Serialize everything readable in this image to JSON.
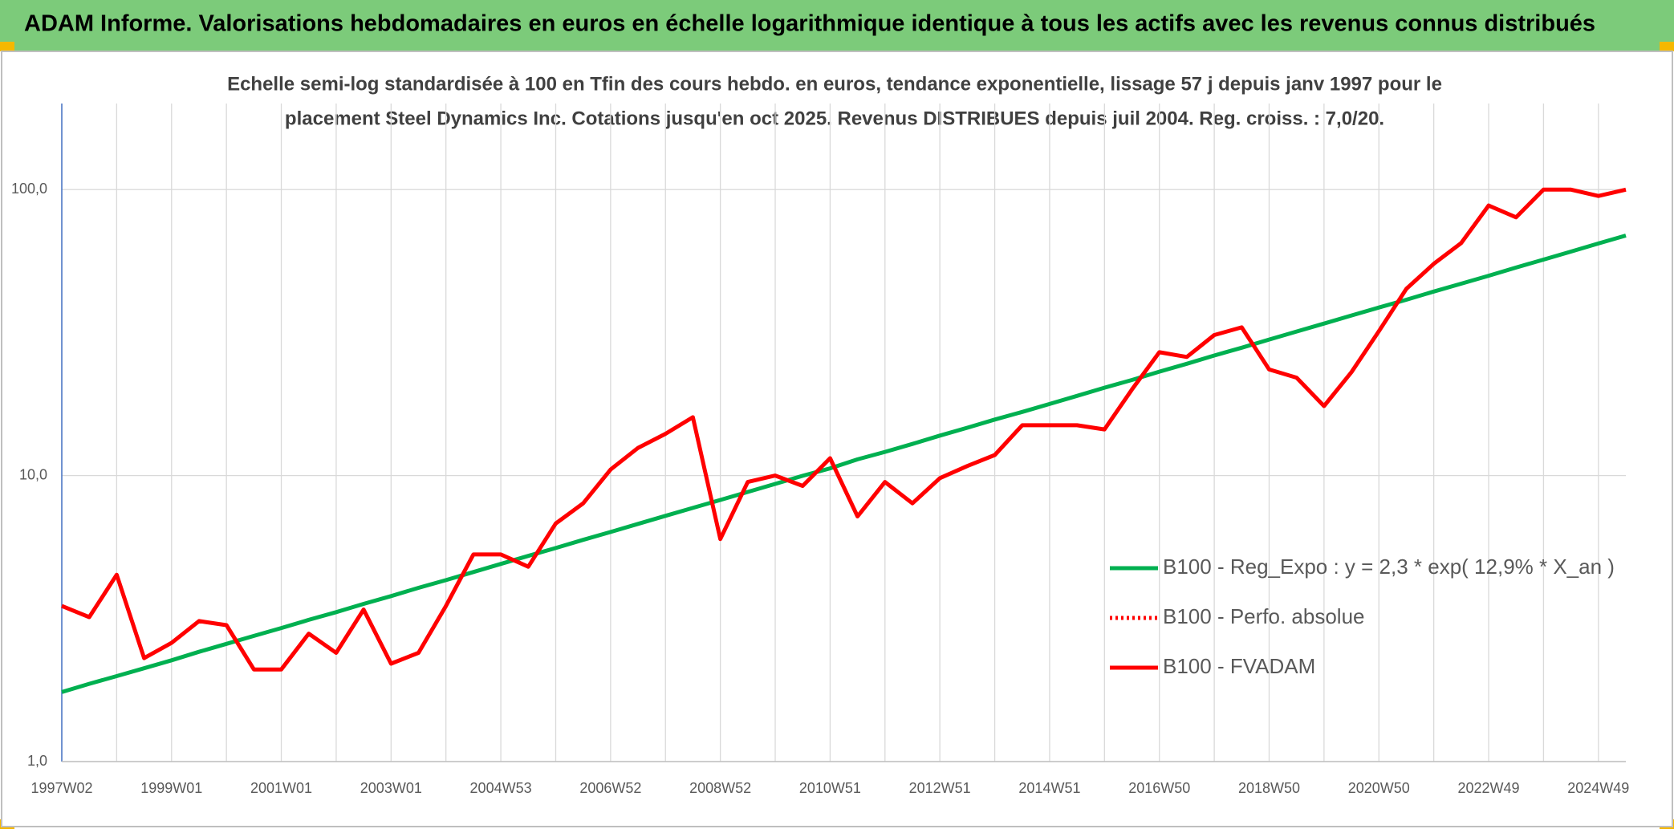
{
  "header": "ADAM Informe. Valorisations hebdomadaires en euros en échelle logarithmique identique à tous les actifs avec les revenus connus distribués",
  "chart_data": {
    "type": "line",
    "title": "Echelle semi-log standardisée à 100 en Tfin des cours hebdo. en euros, tendance exponentielle, lissage 57 j depuis janv 1997 pour le",
    "subtitle": "placement Steel Dynamics Inc. Cotations jusqu'en oct 2025. Revenus DISTRIBUES depuis juil 2004. Reg. croiss. : 7,0/20.",
    "categories": [
      "1997W02",
      null,
      null,
      null,
      "1999W01",
      null,
      null,
      null,
      "2001W01",
      null,
      null,
      null,
      "2003W01",
      null,
      null,
      null,
      "2004W53",
      null,
      null,
      null,
      "2006W52",
      null,
      null,
      null,
      "2008W52",
      null,
      null,
      null,
      "2010W51",
      null,
      null,
      null,
      "2012W51",
      null,
      null,
      null,
      "2014W51",
      null,
      null,
      null,
      "2016W50",
      null,
      null,
      null,
      "2018W50",
      null,
      null,
      null,
      "2020W50",
      null,
      null,
      null,
      "2022W49",
      null,
      null,
      null,
      "2024W49",
      null
    ],
    "series": [
      {
        "name": "B100 - Reg_Expo : y = 2,3 * exp( 12,9% *  X_an )",
        "color": "#00b050",
        "style": "solid",
        "values": [
          1.75,
          1.87,
          1.99,
          2.12,
          2.26,
          2.42,
          2.58,
          2.75,
          2.93,
          3.13,
          3.33,
          3.56,
          3.79,
          4.05,
          4.31,
          4.6,
          4.91,
          5.24,
          5.58,
          5.96,
          6.35,
          6.78,
          7.23,
          7.71,
          8.22,
          8.77,
          9.35,
          9.98,
          10.6,
          11.4,
          12.1,
          12.9,
          13.8,
          14.7,
          15.7,
          16.7,
          17.8,
          19.0,
          20.3,
          21.6,
          23.1,
          24.6,
          26.3,
          28.0,
          29.9,
          31.9,
          34.0,
          36.3,
          38.7,
          41.2,
          44.0,
          46.9,
          50.0,
          53.4,
          56.9,
          60.7,
          64.8,
          69.1
        ]
      },
      {
        "name": "B100 - Perfo. absolue",
        "color": "#ff0000",
        "style": "dotted",
        "values": [
          null,
          null,
          null,
          null,
          null,
          null,
          null,
          null,
          null,
          null,
          null,
          null,
          null,
          null,
          null,
          null,
          null,
          null,
          null,
          null,
          null,
          null,
          null,
          null,
          null,
          null,
          null,
          null,
          null,
          null,
          null,
          null,
          null,
          null,
          null,
          null,
          null,
          null,
          null,
          null,
          null,
          null,
          null,
          null,
          null,
          null,
          null,
          null,
          null,
          null,
          null,
          null,
          null,
          null,
          null,
          null,
          null,
          null
        ]
      },
      {
        "name": "B100 - FVADAM",
        "color": "#ff0000",
        "style": "solid",
        "values": [
          3.5,
          3.2,
          4.5,
          2.3,
          2.6,
          3.1,
          3.0,
          2.1,
          2.1,
          2.8,
          2.4,
          3.4,
          2.2,
          2.4,
          3.5,
          5.3,
          5.3,
          4.8,
          6.8,
          8.0,
          10.5,
          12.5,
          14.0,
          16.0,
          6.0,
          9.5,
          10.0,
          9.2,
          11.5,
          7.2,
          9.5,
          8.0,
          9.8,
          10.8,
          11.8,
          15.0,
          15.0,
          15.0,
          14.5,
          20.0,
          27.0,
          26.0,
          31.0,
          33.0,
          23.5,
          22.0,
          17.5,
          23.0,
          32.0,
          45.0,
          55.0,
          65.0,
          88.0,
          80.0,
          100.0,
          100.0,
          95.0,
          100.0
        ]
      }
    ],
    "ylim": [
      1,
      200
    ],
    "log_scale": true,
    "yticks": [
      {
        "value": 1,
        "label": "1,0"
      },
      {
        "value": 10,
        "label": "10,0"
      },
      {
        "value": 100,
        "label": "100,0"
      }
    ],
    "grid": true,
    "legend": "right"
  }
}
